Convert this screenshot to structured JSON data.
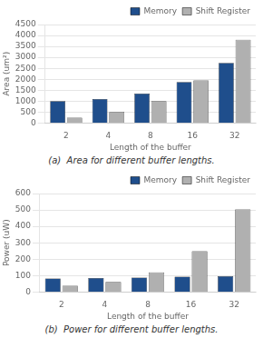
{
  "chart_data": [
    {
      "type": "bar",
      "categories": [
        "2",
        "4",
        "8",
        "16",
        "32"
      ],
      "series": [
        {
          "name": "Memory",
          "color": "#1F4E8C",
          "values": [
            1000,
            1100,
            1350,
            1875,
            2750
          ]
        },
        {
          "name": "Shift Register",
          "color": "#B0B0B0",
          "values": [
            250,
            500,
            1000,
            1950,
            3800
          ]
        }
      ],
      "y_label": "Area (um²)",
      "x_label": "Length of the buffer",
      "ylim": [
        0,
        4500
      ],
      "yticks": [
        0,
        500,
        1000,
        1500,
        2000,
        2500,
        3000,
        3500,
        4000,
        4500
      ],
      "grid": true,
      "legend": "upper right",
      "annotations": [
        "(a)  Area for different buffer lengths."
      ]
    },
    {
      "type": "bar",
      "categories": [
        "2",
        "4",
        "8",
        "16",
        "32"
      ],
      "series": [
        {
          "name": "Memory",
          "color": "#1F4E8C",
          "values": [
            82,
            85,
            88,
            93,
            97
          ]
        },
        {
          "name": "Shift Register",
          "color": "#B0B0B0",
          "values": [
            38,
            62,
            120,
            248,
            503
          ]
        }
      ],
      "y_label": "Power (uW)",
      "x_label": "Length of the buffer",
      "ylim": [
        0,
        600
      ],
      "yticks": [
        0,
        100,
        200,
        300,
        400,
        500,
        600
      ],
      "grid": true,
      "legend": "upper right",
      "annotations": [
        "(b)  Power for different buffer lengths."
      ]
    }
  ]
}
